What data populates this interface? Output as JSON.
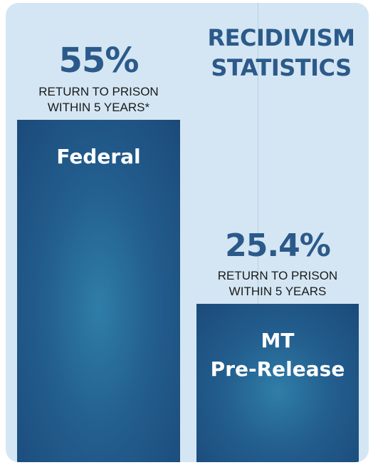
{
  "chart_data": {
    "type": "bar",
    "title": "RECIDIVISM STATISTICS",
    "categories": [
      "Federal",
      "MT Pre-Release"
    ],
    "values": [
      55,
      25.4
    ],
    "value_labels": [
      "55%",
      "25.4%"
    ],
    "sublabels": [
      "RETURN TO PRISON\nWITHIN 5 YEARS*",
      "RETURN TO PRISON\nWITHIN 5 YEARS"
    ],
    "bar_labels": [
      "Federal",
      "MT\nPre-Release"
    ],
    "ylim": [
      0,
      55
    ],
    "grid": false,
    "legend": "none"
  },
  "colors": {
    "background": "#d4e6f3",
    "bar": "#235f8f",
    "accent_text": "#2b5a8a",
    "bar_text": "#ffffff"
  }
}
